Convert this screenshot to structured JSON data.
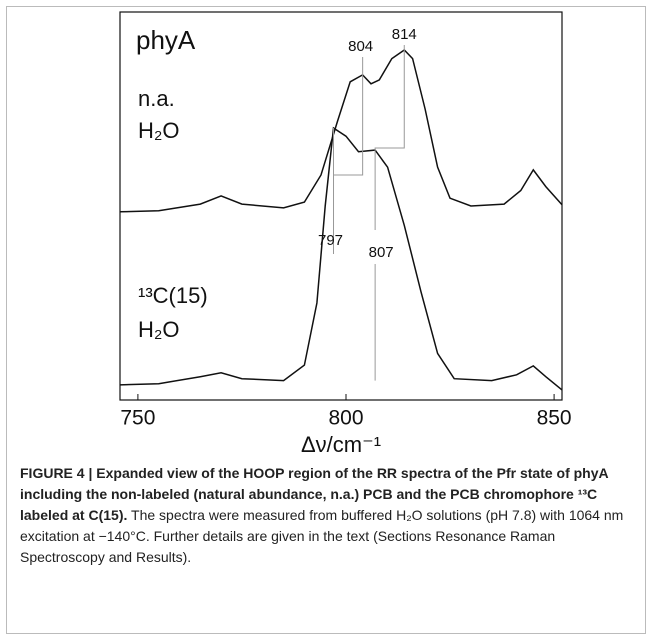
{
  "chart_data": {
    "type": "line",
    "panel_label": "phyA",
    "xlim": [
      745.7,
      851.9
    ],
    "xticks": [
      750,
      800,
      850
    ],
    "x_label": "Δν/cm⁻¹",
    "ylim": [
      0,
      100
    ],
    "series": [
      {
        "name": "n.a. H₂O",
        "label_lines": [
          "n.a.",
          "H₂O"
        ],
        "color": "#111",
        "x": [
          745.7,
          755,
          765,
          770,
          775,
          785,
          790,
          794,
          798,
          801,
          804,
          806,
          808,
          811,
          814,
          816,
          819,
          822,
          825,
          830,
          838,
          842,
          845,
          848,
          851.9
        ],
        "values": [
          48.5,
          48.8,
          50.5,
          52.6,
          50.5,
          49.5,
          51,
          58,
          72,
          82,
          83.8,
          81.5,
          82.5,
          88,
          90.2,
          88,
          75,
          60,
          52,
          50,
          50.5,
          54,
          59.3,
          55,
          50.3
        ],
        "peaks": [
          804,
          814
        ]
      },
      {
        "name": "¹³C(15) H₂O",
        "label_lines": [
          "¹³C(15)",
          "H₂O"
        ],
        "color": "#111",
        "x": [
          745.7,
          755,
          765,
          770,
          775,
          785,
          790,
          793,
          795,
          797,
          800,
          803,
          807,
          810,
          814,
          818,
          822,
          826,
          835,
          841,
          845,
          848,
          851.9
        ],
        "values": [
          3.9,
          4.2,
          6,
          7,
          5.5,
          5,
          9,
          25,
          50,
          70.1,
          68,
          64,
          64.4,
          60,
          45,
          28,
          12,
          5.5,
          5,
          6.5,
          8.8,
          6,
          2.6
        ],
        "peaks": [
          797,
          807
        ]
      }
    ]
  },
  "caption": {
    "bold": "FIGURE 4 | Expanded view of the HOOP region of the RR spectra of the Pfr state of phyA including the non-labeled (natural abundance, n.a.) PCB and the PCB chromophore ¹³C labeled at C(15).",
    "text": "The spectra were measured from buffered H₂O solutions (pH 7.8) with 1064 nm excitation at −140°C. Further details are given in the text (Sections Resonance Raman Spectroscopy and Results)."
  }
}
